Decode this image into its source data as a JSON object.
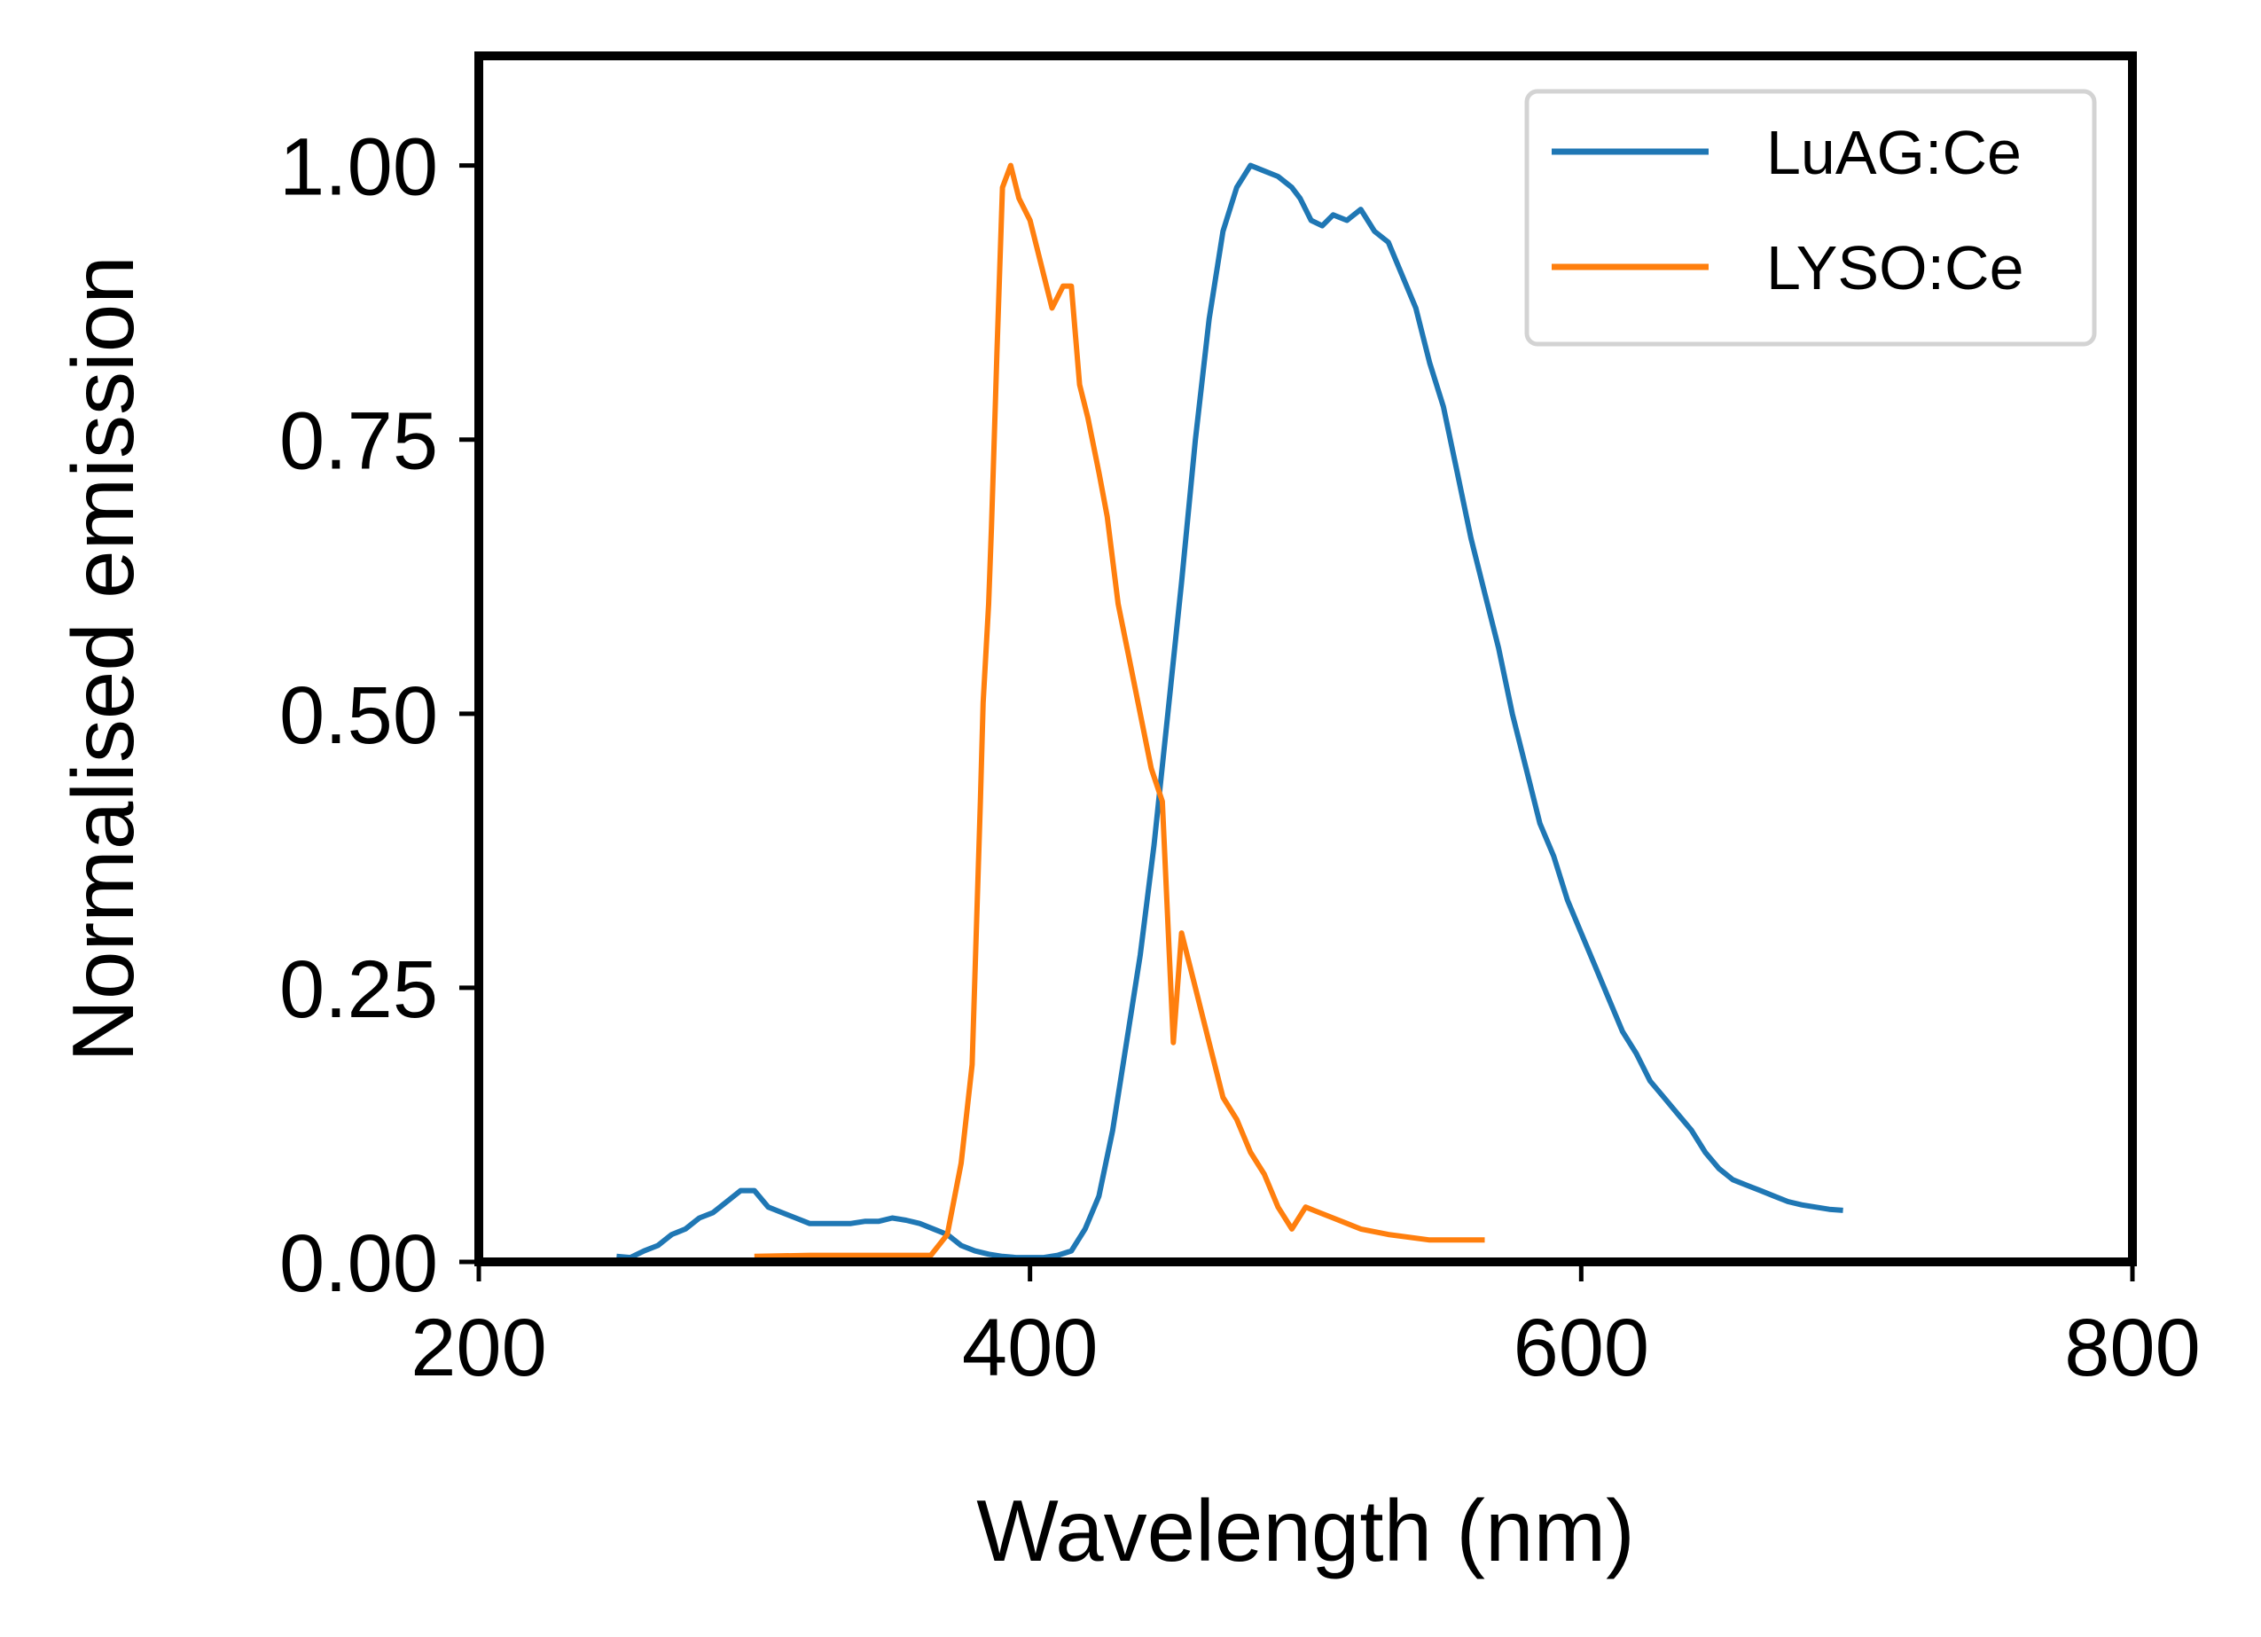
{
  "chart_data": {
    "type": "line",
    "xlabel": "Wavelength (nm)",
    "ylabel": "Normalised emission",
    "xlim": [
      200,
      800
    ],
    "ylim": [
      0,
      1.1
    ],
    "xticks": [
      200,
      400,
      600,
      800
    ],
    "yticks": [
      0.0,
      0.25,
      0.5,
      0.75,
      1.0
    ],
    "xtick_labels": [
      "200",
      "400",
      "600",
      "800"
    ],
    "ytick_labels": [
      "0.00",
      "0.25",
      "0.50",
      "0.75",
      "1.00"
    ],
    "grid": false,
    "legend": "upper right",
    "series": [
      {
        "name": "LuAG:Ce",
        "color": "#1f77b4",
        "x": [
          250,
          255,
          260,
          265,
          270,
          275,
          280,
          285,
          290,
          295,
          300,
          305,
          310,
          315,
          320,
          325,
          330,
          335,
          340,
          345,
          350,
          355,
          360,
          365,
          370,
          375,
          380,
          385,
          390,
          395,
          400,
          405,
          410,
          415,
          420,
          425,
          430,
          435,
          440,
          445,
          450,
          455,
          460,
          465,
          470,
          475,
          480,
          485,
          490,
          495,
          498,
          502,
          506,
          510,
          515,
          520,
          525,
          530,
          535,
          540,
          545,
          550,
          555,
          560,
          565,
          570,
          575,
          580,
          585,
          590,
          595,
          600,
          605,
          610,
          615,
          620,
          625,
          630,
          635,
          640,
          645,
          650,
          655,
          660,
          665,
          670,
          675,
          680,
          685,
          690,
          695
        ],
        "y": [
          0.005,
          0.004,
          0.01,
          0.015,
          0.025,
          0.03,
          0.04,
          0.045,
          0.055,
          0.065,
          0.065,
          0.05,
          0.045,
          0.04,
          0.035,
          0.035,
          0.035,
          0.035,
          0.037,
          0.037,
          0.04,
          0.038,
          0.035,
          0.03,
          0.025,
          0.015,
          0.01,
          0.007,
          0.005,
          0.004,
          0.004,
          0.004,
          0.006,
          0.01,
          0.03,
          0.06,
          0.12,
          0.2,
          0.28,
          0.38,
          0.5,
          0.62,
          0.75,
          0.86,
          0.94,
          0.98,
          1.0,
          0.995,
          0.99,
          0.98,
          0.97,
          0.95,
          0.945,
          0.955,
          0.95,
          0.96,
          0.94,
          0.93,
          0.9,
          0.87,
          0.82,
          0.78,
          0.72,
          0.66,
          0.61,
          0.56,
          0.5,
          0.45,
          0.4,
          0.37,
          0.33,
          0.3,
          0.27,
          0.24,
          0.21,
          0.19,
          0.165,
          0.15,
          0.135,
          0.12,
          0.1,
          0.085,
          0.075,
          0.07,
          0.065,
          0.06,
          0.055,
          0.052,
          0.05,
          0.048,
          0.047
        ]
      },
      {
        "name": "LYSO:Ce",
        "color": "#ff7f0e",
        "x": [
          300,
          320,
          340,
          360,
          364,
          370,
          375,
          379,
          380,
          382,
          383,
          385,
          386,
          388,
          390,
          393,
          396,
          400,
          405,
          408,
          410,
          412,
          415,
          418,
          421,
          425,
          428,
          432,
          436,
          440,
          444,
          448,
          452,
          455,
          460,
          465,
          470,
          475,
          480,
          485,
          490,
          495,
          500,
          505,
          510,
          520,
          530,
          545,
          565
        ],
        "y": [
          0.005,
          0.006,
          0.006,
          0.006,
          0.006,
          0.025,
          0.09,
          0.18,
          0.26,
          0.42,
          0.51,
          0.6,
          0.67,
          0.83,
          0.98,
          1.0,
          0.97,
          0.95,
          0.9,
          0.87,
          0.88,
          0.89,
          0.89,
          0.8,
          0.77,
          0.72,
          0.68,
          0.6,
          0.55,
          0.5,
          0.45,
          0.42,
          0.2,
          0.3,
          0.25,
          0.2,
          0.15,
          0.13,
          0.1,
          0.08,
          0.05,
          0.03,
          0.05,
          0.045,
          0.04,
          0.03,
          0.025,
          0.02,
          0.02
        ]
      }
    ]
  }
}
